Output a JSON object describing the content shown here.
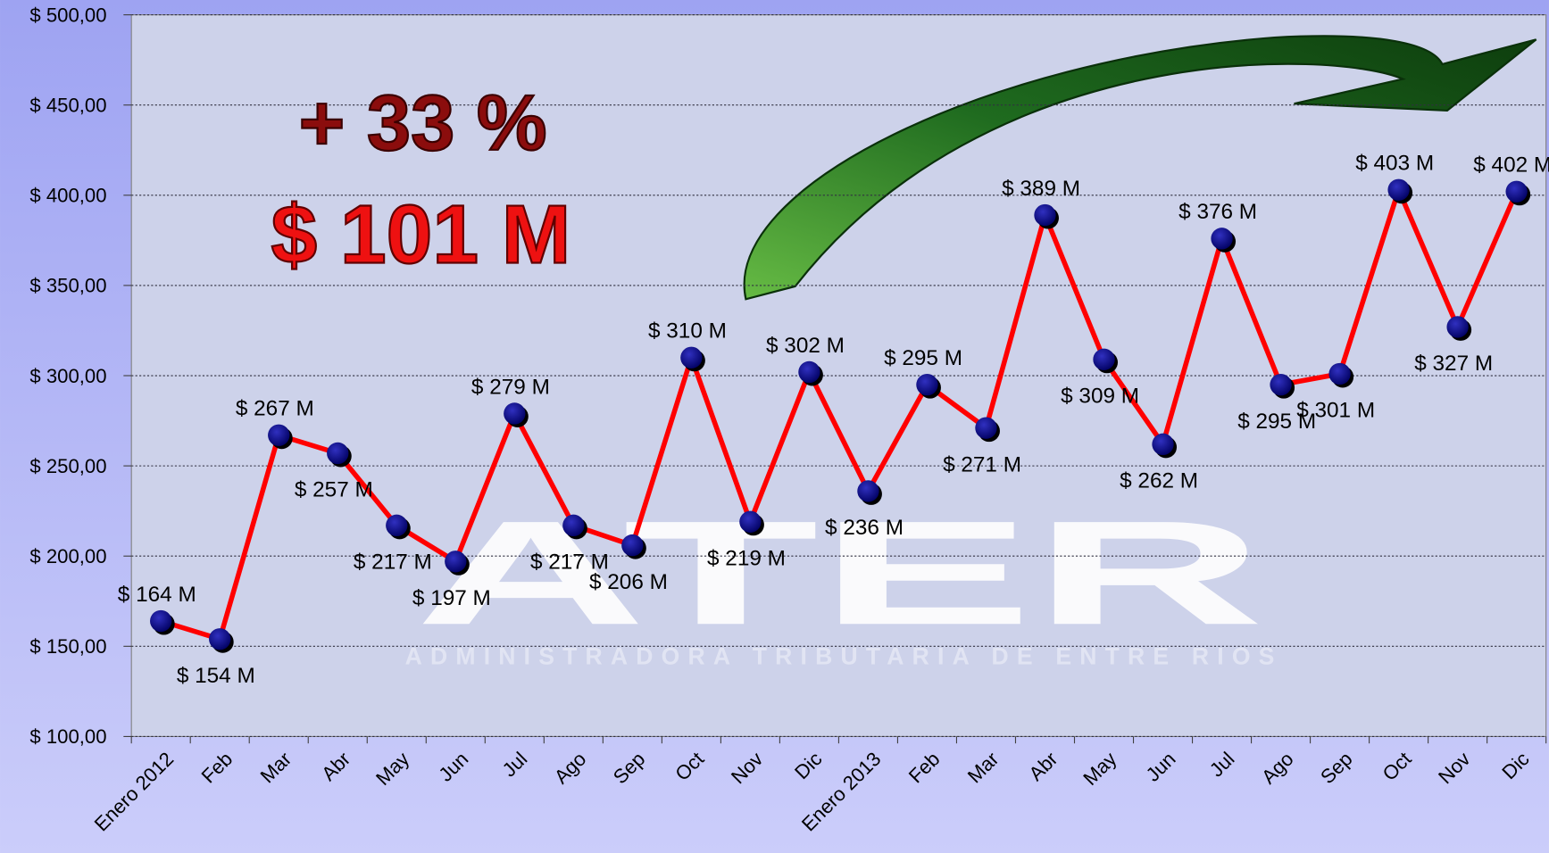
{
  "chart_data": {
    "type": "line",
    "annotations": [
      "+ 33 %",
      "$ 101 M"
    ],
    "watermark": {
      "title": "ATER",
      "subtitle": "ADMINISTRADORA TRIBUTARIA DE ENTRE RIOS"
    },
    "categories": [
      "Enero 2012",
      "Feb",
      "Mar",
      "Abr",
      "May",
      "Jun",
      "Jul",
      "Ago",
      "Sep",
      "Oct",
      "Nov",
      "Dic",
      "Enero 2013",
      "Feb",
      "Mar",
      "Abr",
      "May",
      "Jun",
      "Jul",
      "Ago",
      "Sep",
      "Oct",
      "Nov",
      "Dic"
    ],
    "values": [
      164,
      154,
      267,
      257,
      217,
      197,
      279,
      217,
      206,
      310,
      219,
      302,
      236,
      295,
      271,
      389,
      309,
      262,
      376,
      295,
      301,
      403,
      327,
      402
    ],
    "value_labels": [
      "$ 164 M",
      "$ 154 M",
      "$ 267 M",
      "$ 257 M",
      "$ 217 M",
      "$ 197 M",
      "$ 279 M",
      "$ 217 M",
      "$ 206 M",
      "$ 310 M",
      "$ 219 M",
      "$ 302 M",
      "$ 236 M",
      "$ 295 M",
      "$ 271 M",
      "$ 389 M",
      "$ 309 M",
      "$ 262 M",
      "$ 376 M",
      "$ 295 M",
      "$ 301 M",
      "$ 403 M",
      "$ 327 M",
      "$ 402 M"
    ],
    "color": "#ff0000",
    "marker_color": "#000080",
    "ylim": [
      100,
      500
    ],
    "yticks": [
      {
        "value": 100,
        "label": "$ 100,00"
      },
      {
        "value": 150,
        "label": "$ 150,00"
      },
      {
        "value": 200,
        "label": "$ 200,00"
      },
      {
        "value": 250,
        "label": "$ 250,00"
      },
      {
        "value": 300,
        "label": "$ 300,00"
      },
      {
        "value": 350,
        "label": "$ 350,00"
      },
      {
        "value": 400,
        "label": "$ 400,00"
      },
      {
        "value": 450,
        "label": "$ 450,00"
      },
      {
        "value": 500,
        "label": "$ 500,00"
      }
    ],
    "grid": true
  }
}
